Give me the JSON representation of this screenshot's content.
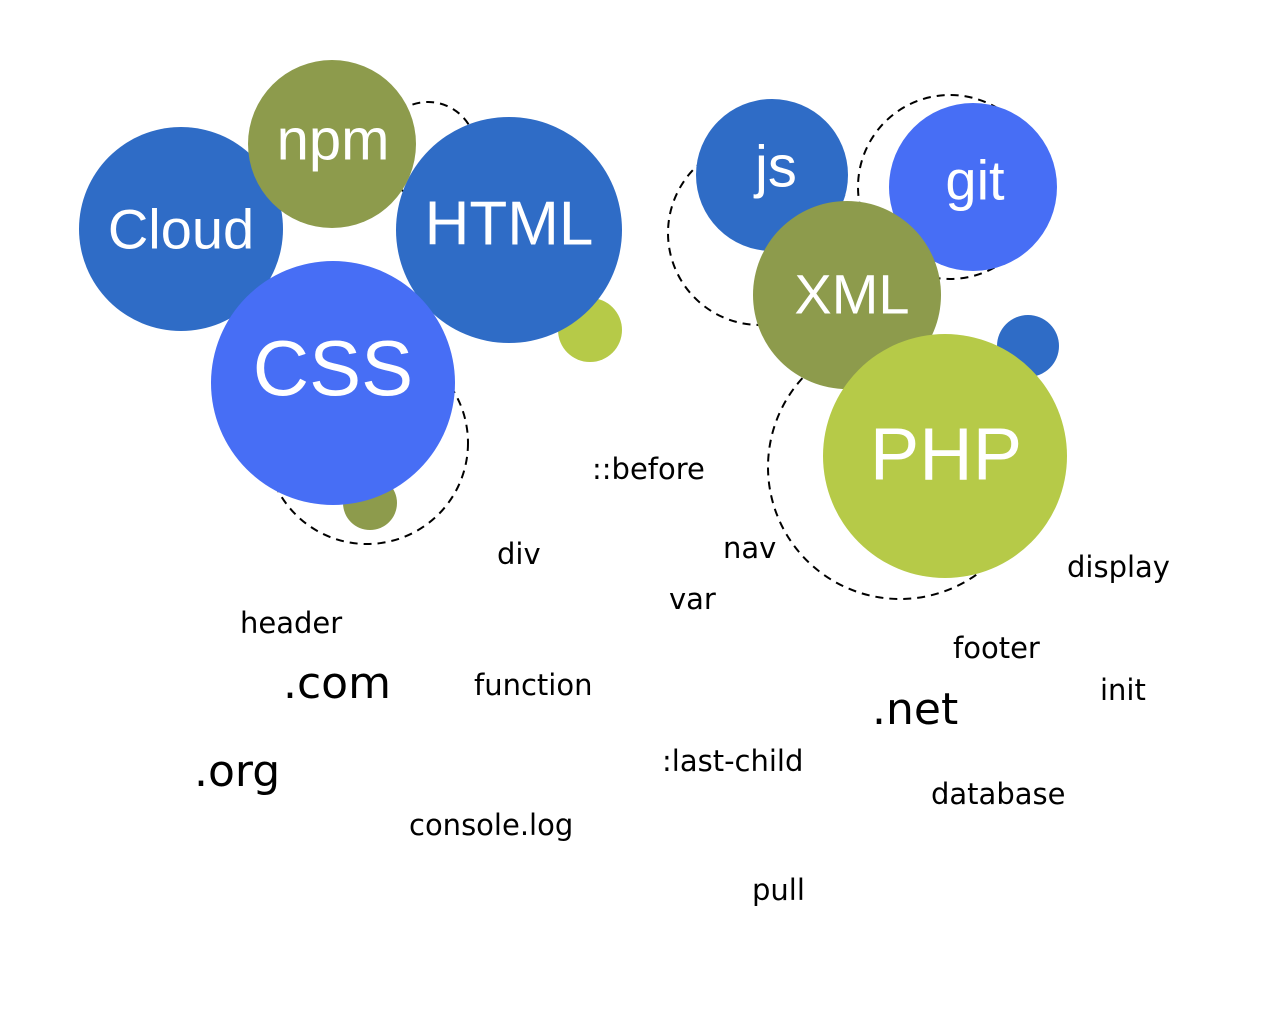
{
  "colors": {
    "dark_blue": "#2f6cc6",
    "bright_blue": "#476ef5",
    "olive": "#8d9b4c",
    "lime": "#b6ca48",
    "text": "#000000",
    "dash": "#000000"
  },
  "bubbles": {
    "cloud": "Cloud",
    "npm": "npm",
    "html": "HTML",
    "css": "CSS",
    "js": "js",
    "git": "git",
    "xml": "XML",
    "php": "PHP"
  },
  "words": {
    "before": "::before",
    "div": "div",
    "nav": "nav",
    "var": "var",
    "display": "display",
    "header": "header",
    "com": ".com",
    "function": "function",
    "footer": "footer",
    "init": "init",
    "net": ".net",
    "org": ".org",
    "last_child": ":last-child",
    "database": "database",
    "console_log": "console.log",
    "pull": "pull"
  }
}
